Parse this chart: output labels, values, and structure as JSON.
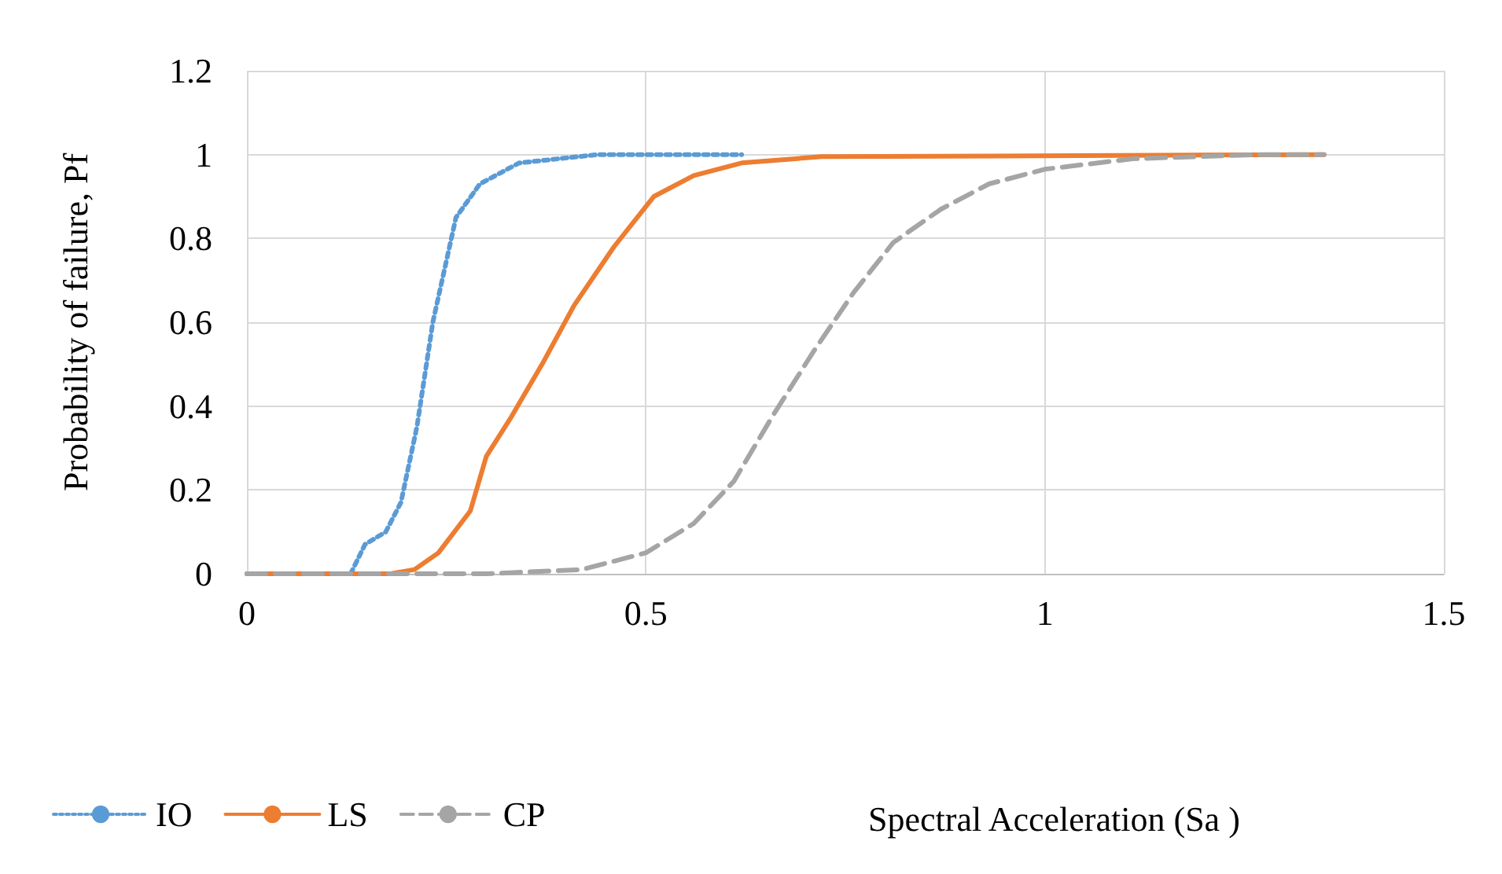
{
  "chart_data": {
    "type": "line",
    "xlabel": "Spectral Acceleration (Sa )",
    "ylabel": "Probability of failure, Pf",
    "xlim": [
      0,
      1.5
    ],
    "xticks": [
      0,
      0.5,
      1,
      1.5
    ],
    "ylim": [
      0,
      1.2
    ],
    "yticks": [
      0,
      0.2,
      0.4,
      0.6,
      0.8,
      1,
      1.2
    ],
    "grid": true,
    "legend": "bottom",
    "marker": "none",
    "series": [
      {
        "name": "IO",
        "color": "#5b9bd5",
        "line_style": "dotted",
        "x": [
          0,
          0.13,
          0.148,
          0.174,
          0.193,
          0.213,
          0.233,
          0.262,
          0.292,
          0.341,
          0.44,
          0.52,
          0.62
        ],
        "values": [
          0,
          0,
          0.07,
          0.1,
          0.17,
          0.35,
          0.6,
          0.85,
          0.93,
          0.98,
          1,
          1,
          1
        ]
      },
      {
        "name": "LS",
        "color": "#ed7d31",
        "line_style": "solid",
        "x": [
          0,
          0.18,
          0.21,
          0.24,
          0.28,
          0.3,
          0.33,
          0.37,
          0.41,
          0.46,
          0.51,
          0.56,
          0.62,
          0.72,
          1.35
        ],
        "values": [
          0,
          0,
          0.01,
          0.05,
          0.15,
          0.28,
          0.37,
          0.5,
          0.64,
          0.78,
          0.9,
          0.95,
          0.98,
          0.995,
          1
        ]
      },
      {
        "name": "CP",
        "color": "#a5a5a5",
        "line_style": "dashed",
        "x": [
          0,
          0.3,
          0.42,
          0.5,
          0.56,
          0.61,
          0.66,
          0.71,
          0.76,
          0.81,
          0.87,
          0.93,
          1,
          1.11,
          1.27,
          1.35
        ],
        "values": [
          0,
          0,
          0.01,
          0.05,
          0.12,
          0.22,
          0.38,
          0.53,
          0.67,
          0.79,
          0.87,
          0.93,
          0.965,
          0.99,
          1,
          1
        ]
      }
    ]
  }
}
